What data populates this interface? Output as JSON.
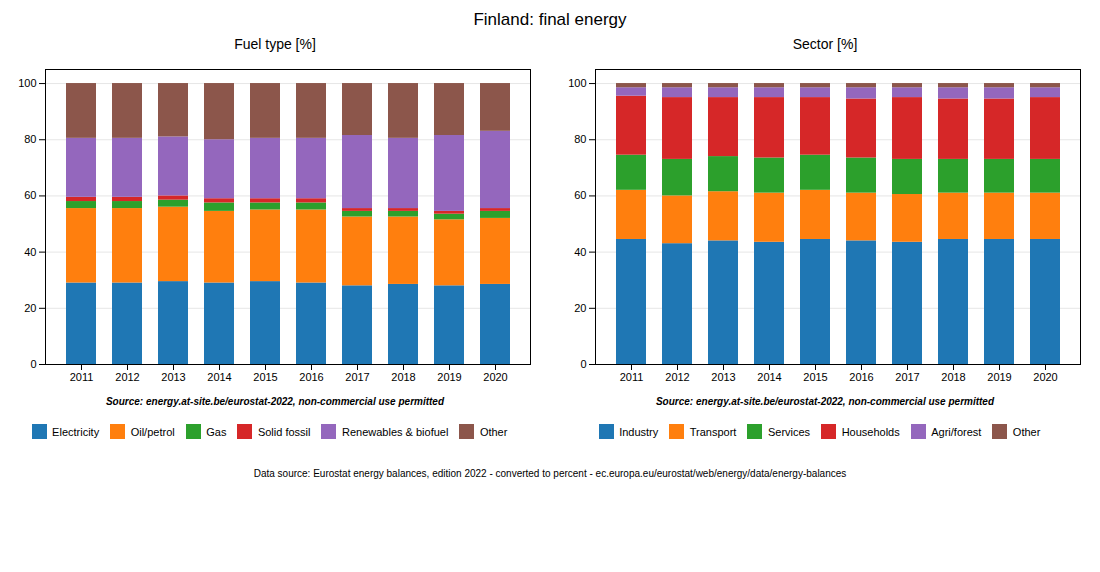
{
  "title": "Finland: final energy",
  "annotations": [
    "Data source: Eurostat energy balances, edition 2022 - converted to percent - ec.europa.eu/eurostat/web/energy/data/energy-balances"
  ],
  "chart_data": [
    {
      "type": "bar",
      "stacked": true,
      "title": "Fuel type [%]",
      "annotations": [
        "Source: energy.at-site.be/eurostat-2022, non-commercial use permitted"
      ],
      "categories": [
        "2011",
        "2012",
        "2013",
        "2014",
        "2015",
        "2016",
        "2017",
        "2018",
        "2019",
        "2020"
      ],
      "series": [
        {
          "name": "Electricity",
          "color": "#1f77b4",
          "values": [
            29.0,
            29.0,
            29.5,
            29.0,
            29.5,
            29.0,
            28.0,
            28.5,
            28.0,
            28.5
          ]
        },
        {
          "name": "Oil/petrol",
          "color": "#ff7f0e",
          "values": [
            26.5,
            26.5,
            26.5,
            25.5,
            25.5,
            26.0,
            24.5,
            24.0,
            23.5,
            23.5
          ]
        },
        {
          "name": "Gas",
          "color": "#2ca02c",
          "values": [
            2.5,
            2.5,
            2.5,
            3.0,
            2.5,
            2.5,
            2.0,
            2.0,
            2.0,
            2.5
          ]
        },
        {
          "name": "Solid fossil",
          "color": "#d62728",
          "values": [
            1.5,
            1.5,
            1.5,
            1.5,
            1.5,
            1.5,
            1.0,
            1.0,
            1.0,
            1.0
          ]
        },
        {
          "name": "Renewables & biofuel",
          "color": "#9467bd",
          "values": [
            21.0,
            21.0,
            21.0,
            21.0,
            21.5,
            21.5,
            26.0,
            25.0,
            27.0,
            27.5
          ]
        },
        {
          "name": "Other",
          "color": "#8c564b",
          "values": [
            19.5,
            19.5,
            19.0,
            20.0,
            19.5,
            19.5,
            18.5,
            19.5,
            18.5,
            17.0
          ]
        }
      ],
      "ylim": [
        0,
        105
      ],
      "yticks": [
        0,
        20,
        40,
        60,
        80,
        100
      ],
      "grid": true,
      "legend": "bottom"
    },
    {
      "type": "bar",
      "stacked": true,
      "title": "Sector [%]",
      "annotations": [
        "Source: energy.at-site.be/eurostat-2022, non-commercial use permitted"
      ],
      "categories": [
        "2011",
        "2012",
        "2013",
        "2014",
        "2015",
        "2016",
        "2017",
        "2018",
        "2019",
        "2020"
      ],
      "series": [
        {
          "name": "Industry",
          "color": "#1f77b4",
          "values": [
            44.5,
            43.0,
            44.0,
            43.5,
            44.5,
            44.0,
            43.5,
            44.5,
            44.5,
            44.5
          ]
        },
        {
          "name": "Transport",
          "color": "#ff7f0e",
          "values": [
            17.5,
            17.0,
            17.5,
            17.5,
            17.5,
            17.0,
            17.0,
            16.5,
            16.5,
            16.5
          ]
        },
        {
          "name": "Services",
          "color": "#2ca02c",
          "values": [
            12.5,
            13.0,
            12.5,
            12.5,
            12.5,
            12.5,
            12.5,
            12.0,
            12.0,
            12.0
          ]
        },
        {
          "name": "Households",
          "color": "#d62728",
          "values": [
            21.0,
            22.0,
            21.0,
            21.5,
            20.5,
            21.0,
            22.0,
            21.5,
            21.5,
            22.0
          ]
        },
        {
          "name": "Agri/forest",
          "color": "#9467bd",
          "values": [
            3.0,
            3.5,
            3.5,
            3.5,
            3.5,
            4.0,
            3.5,
            4.0,
            4.0,
            3.5
          ]
        },
        {
          "name": "Other",
          "color": "#8c564b",
          "values": [
            1.5,
            1.5,
            1.5,
            1.5,
            1.5,
            1.5,
            1.5,
            1.5,
            1.5,
            1.5
          ]
        }
      ],
      "ylim": [
        0,
        105
      ],
      "yticks": [
        0,
        20,
        40,
        60,
        80,
        100
      ],
      "grid": true,
      "legend": "bottom"
    }
  ]
}
